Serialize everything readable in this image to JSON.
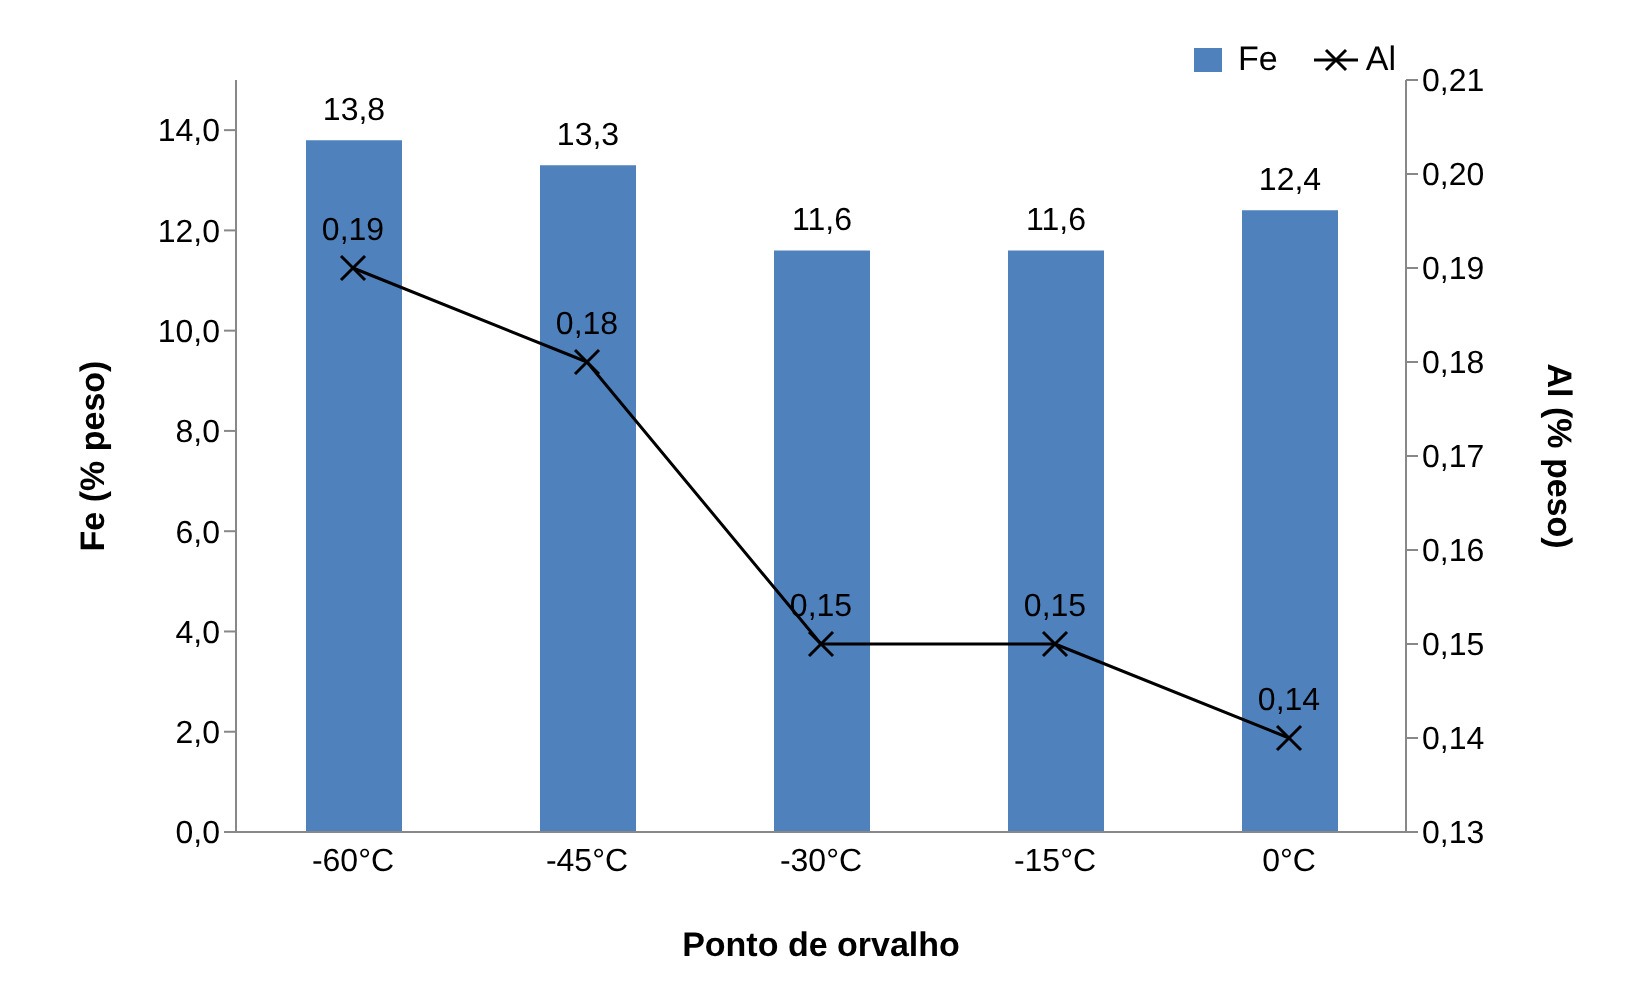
{
  "chart_data": {
    "type": "bar",
    "xlabel": "Ponto de orvalho",
    "ylabel": "Fe (% peso)",
    "y2label": "Al (% peso)",
    "categories": [
      "-60°C",
      "-45°C",
      "-30°C",
      "-15°C",
      "0°C"
    ],
    "series": [
      {
        "name": "Fe",
        "color": "#4f81bd",
        "values": [
          13.8,
          13.3,
          11.6,
          11.6,
          12.4
        ],
        "value_labels": [
          "13,8",
          "13,3",
          "11,6",
          "11,6",
          "12,4"
        ]
      },
      {
        "name": "Al",
        "type": "line",
        "axis": "y2",
        "color": "#000000",
        "values": [
          0.19,
          0.18,
          0.15,
          0.15,
          0.14
        ],
        "value_labels": [
          "0,19",
          "0,18",
          "0,15",
          "0,15",
          "0,14"
        ]
      }
    ],
    "ylim": [
      0,
      15
    ],
    "yticks": [
      {
        "value": 0,
        "label": "0,0"
      },
      {
        "value": 2,
        "label": "2,0"
      },
      {
        "value": 4,
        "label": "4,0"
      },
      {
        "value": 6,
        "label": "6,0"
      },
      {
        "value": 8,
        "label": "8,0"
      },
      {
        "value": 10,
        "label": "10,0"
      },
      {
        "value": 12,
        "label": "12,0"
      },
      {
        "value": 14,
        "label": "14,0"
      }
    ],
    "y2lim": [
      0.13,
      0.21
    ],
    "y2ticks": [
      {
        "value": 0.13,
        "label": "0,13"
      },
      {
        "value": 0.14,
        "label": "0,14"
      },
      {
        "value": 0.15,
        "label": "0,15"
      },
      {
        "value": 0.16,
        "label": "0,16"
      },
      {
        "value": 0.17,
        "label": "0,17"
      },
      {
        "value": 0.18,
        "label": "0,18"
      },
      {
        "value": 0.19,
        "label": "0,19"
      },
      {
        "value": 0.2,
        "label": "0,20"
      },
      {
        "value": 0.21,
        "label": "0,21"
      }
    ],
    "legend": "top right",
    "marker": "cross"
  }
}
